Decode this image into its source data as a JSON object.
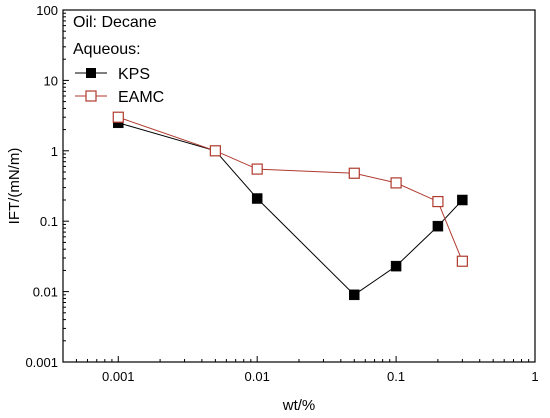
{
  "chart_data": {
    "type": "line",
    "xlabel": "wt/%",
    "ylabel": "IFT/(mN/m)",
    "xscale": "log",
    "yscale": "log",
    "xlim": [
      0.0004,
      1
    ],
    "ylim": [
      0.001,
      100
    ],
    "xticks": [
      {
        "value": 0.001,
        "label": "0.001"
      },
      {
        "value": 0.01,
        "label": "0.01"
      },
      {
        "value": 0.1,
        "label": "0.1"
      },
      {
        "value": 1,
        "label": "1"
      }
    ],
    "yticks": [
      {
        "value": 0.001,
        "label": "0.001"
      },
      {
        "value": 0.01,
        "label": "0.01"
      },
      {
        "value": 0.1,
        "label": "0.1"
      },
      {
        "value": 1,
        "label": "1"
      },
      {
        "value": 10,
        "label": "10"
      },
      {
        "value": 100,
        "label": "100"
      }
    ],
    "annotations": [
      "Oil: Decane",
      "Aqueous:"
    ],
    "legend_position": "top-left",
    "grid": false,
    "series": [
      {
        "name": "KPS",
        "color": "#000000",
        "marker": "filled-square",
        "points": [
          {
            "x": 0.001,
            "y": 2.5
          },
          {
            "x": 0.005,
            "y": 1.0
          },
          {
            "x": 0.01,
            "y": 0.21
          },
          {
            "x": 0.05,
            "y": 0.009
          },
          {
            "x": 0.1,
            "y": 0.023
          },
          {
            "x": 0.2,
            "y": 0.085
          },
          {
            "x": 0.3,
            "y": 0.2
          }
        ]
      },
      {
        "name": "EAMC",
        "color": "#b03a2e",
        "marker": "open-square",
        "points": [
          {
            "x": 0.001,
            "y": 3.0
          },
          {
            "x": 0.005,
            "y": 1.0
          },
          {
            "x": 0.01,
            "y": 0.55
          },
          {
            "x": 0.05,
            "y": 0.48
          },
          {
            "x": 0.1,
            "y": 0.35
          },
          {
            "x": 0.2,
            "y": 0.19
          },
          {
            "x": 0.3,
            "y": 0.027
          }
        ]
      }
    ]
  }
}
